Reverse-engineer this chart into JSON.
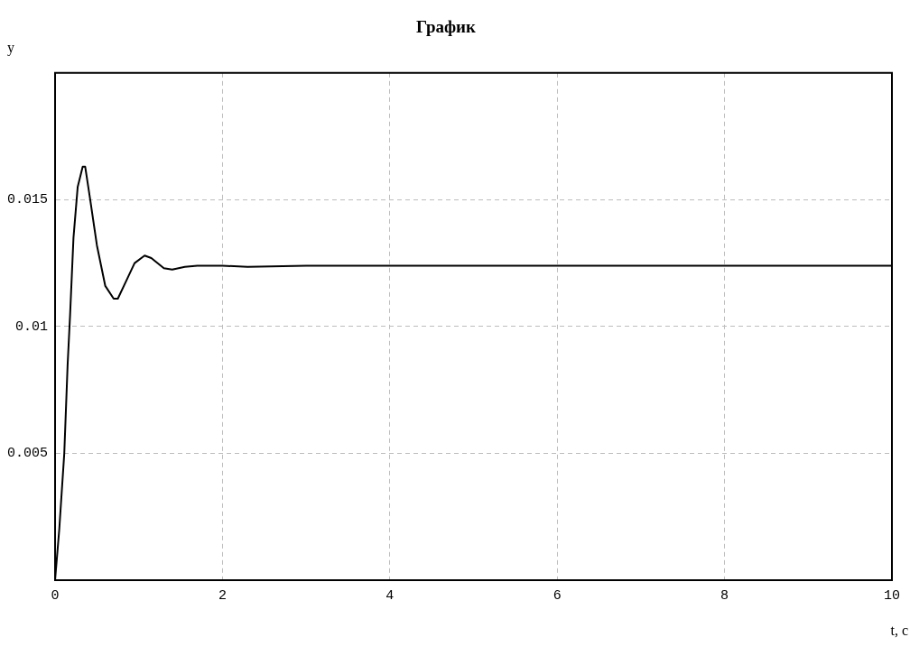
{
  "chart_data": {
    "type": "line",
    "title": "График",
    "xlabel": "t, c",
    "ylabel": "y",
    "xlim": [
      0,
      10
    ],
    "ylim": [
      0,
      0.02
    ],
    "xticks": [
      0,
      2,
      4,
      6,
      8,
      10
    ],
    "yticks": [
      0.005,
      0.01,
      0.015
    ],
    "grid": true,
    "legend": false,
    "marker": "none",
    "line_style": "solid",
    "series": [
      {
        "color": "#000000",
        "x": [
          0,
          0.05,
          0.11,
          0.15,
          0.18,
          0.22,
          0.27,
          0.33,
          0.36,
          0.42,
          0.5,
          0.6,
          0.7,
          0.75,
          0.85,
          0.95,
          1.07,
          1.15,
          1.3,
          1.4,
          1.55,
          1.7,
          2,
          2.3,
          3,
          10
        ],
        "values": [
          0,
          0.002,
          0.005,
          0.0085,
          0.0105,
          0.0135,
          0.0155,
          0.0163,
          0.0163,
          0.015,
          0.0132,
          0.0116,
          0.0111,
          0.0111,
          0.0118,
          0.0125,
          0.0128,
          0.0127,
          0.0123,
          0.01225,
          0.01235,
          0.0124,
          0.0124,
          0.01235,
          0.0124,
          0.0124
        ]
      }
    ]
  }
}
